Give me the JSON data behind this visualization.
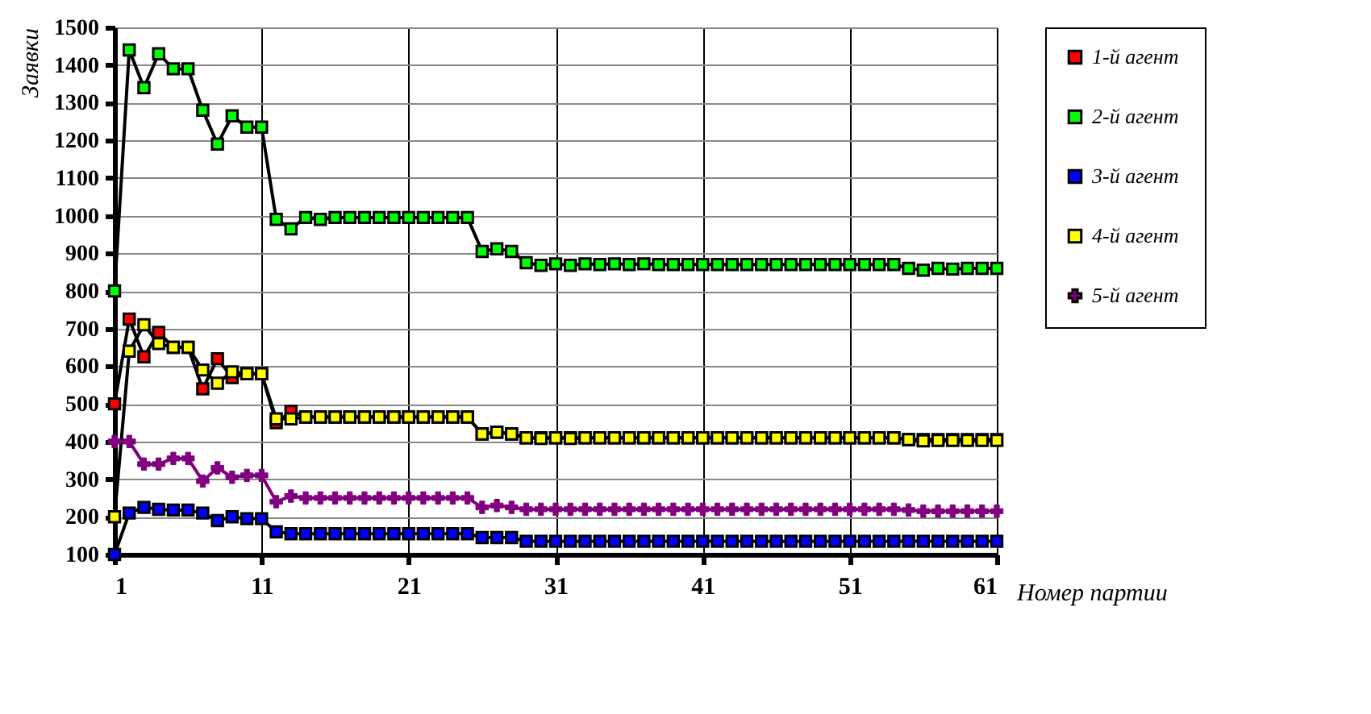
{
  "chart_data": {
    "type": "line",
    "xlabel": "Номер партии",
    "ylabel": "Заявки",
    "x": [
      1,
      2,
      3,
      4,
      5,
      6,
      7,
      8,
      9,
      10,
      11,
      12,
      13,
      14,
      15,
      16,
      17,
      18,
      19,
      20,
      21,
      22,
      23,
      24,
      25,
      26,
      27,
      28,
      29,
      30,
      31,
      32,
      33,
      34,
      35,
      36,
      37,
      38,
      39,
      40,
      41,
      42,
      43,
      44,
      45,
      46,
      47,
      48,
      49,
      50,
      51,
      52,
      53,
      54,
      55,
      56,
      57,
      58,
      59,
      60,
      61
    ],
    "xlim": [
      1,
      61
    ],
    "xticks": [
      1,
      11,
      21,
      31,
      41,
      51,
      61
    ],
    "ylim": [
      100,
      1500
    ],
    "yticks": [
      100,
      200,
      300,
      400,
      500,
      600,
      700,
      800,
      900,
      1000,
      1100,
      1200,
      1300,
      1400,
      1500
    ],
    "grid": true,
    "legend": "right",
    "series": [
      {
        "name": "1-й агент",
        "color": "#ff0000",
        "marker": "square",
        "values": [
          500,
          725,
          625,
          690,
          650,
          650,
          540,
          620,
          570,
          580,
          580,
          450,
          480,
          465,
          465,
          465,
          465,
          465,
          465,
          465,
          465,
          465,
          465,
          465,
          465,
          420,
          425,
          420,
          410,
          410,
          410,
          410,
          410,
          410,
          410,
          410,
          410,
          410,
          410,
          410,
          410,
          410,
          410,
          410,
          410,
          410,
          410,
          410,
          410,
          410,
          410,
          410,
          410,
          410,
          405,
          405,
          405,
          405,
          405,
          405,
          405
        ]
      },
      {
        "name": "2-й  агент",
        "color": "#00ff00",
        "marker": "square",
        "values": [
          800,
          1440,
          1340,
          1430,
          1390,
          1390,
          1280,
          1190,
          1265,
          1235,
          1235,
          990,
          965,
          995,
          990,
          995,
          995,
          995,
          995,
          995,
          995,
          995,
          995,
          995,
          995,
          905,
          912,
          905,
          875,
          868,
          872,
          868,
          872,
          870,
          872,
          870,
          872,
          870,
          870,
          870,
          870,
          870,
          870,
          870,
          870,
          870,
          870,
          870,
          870,
          870,
          870,
          870,
          870,
          870,
          860,
          855,
          860,
          858,
          860,
          860,
          860
        ]
      },
      {
        "name": "3-й  агент",
        "color": "#0000ff",
        "marker": "square",
        "values": [
          100,
          210,
          225,
          220,
          218,
          218,
          210,
          190,
          200,
          195,
          195,
          160,
          155,
          155,
          155,
          155,
          155,
          155,
          155,
          155,
          155,
          155,
          155,
          155,
          155,
          145,
          145,
          145,
          135,
          135,
          135,
          135,
          135,
          135,
          135,
          135,
          135,
          135,
          135,
          135,
          135,
          135,
          135,
          135,
          135,
          135,
          135,
          135,
          135,
          135,
          135,
          135,
          135,
          135,
          135,
          135,
          135,
          135,
          135,
          135,
          135
        ]
      },
      {
        "name": "4-й  агент",
        "color": "#ffff00",
        "marker": "square",
        "values": [
          200,
          640,
          710,
          660,
          650,
          650,
          590,
          555,
          585,
          580,
          580,
          460,
          460,
          465,
          465,
          465,
          465,
          465,
          465,
          465,
          465,
          465,
          465,
          465,
          465,
          420,
          425,
          420,
          410,
          408,
          410,
          408,
          410,
          410,
          410,
          410,
          410,
          410,
          410,
          410,
          410,
          410,
          410,
          410,
          410,
          410,
          410,
          410,
          410,
          410,
          410,
          410,
          410,
          410,
          405,
          402,
          403,
          403,
          403,
          403,
          403
        ]
      },
      {
        "name": "5-й агент",
        "color": "#800080",
        "marker": "cross",
        "values": [
          400,
          400,
          340,
          340,
          355,
          355,
          295,
          330,
          305,
          310,
          310,
          240,
          255,
          250,
          250,
          250,
          250,
          250,
          250,
          250,
          250,
          250,
          250,
          250,
          250,
          225,
          230,
          225,
          220,
          220,
          220,
          220,
          220,
          220,
          220,
          220,
          220,
          220,
          220,
          220,
          220,
          220,
          220,
          220,
          220,
          220,
          220,
          220,
          220,
          220,
          220,
          220,
          220,
          220,
          218,
          215,
          215,
          215,
          215,
          215,
          215
        ]
      }
    ]
  }
}
